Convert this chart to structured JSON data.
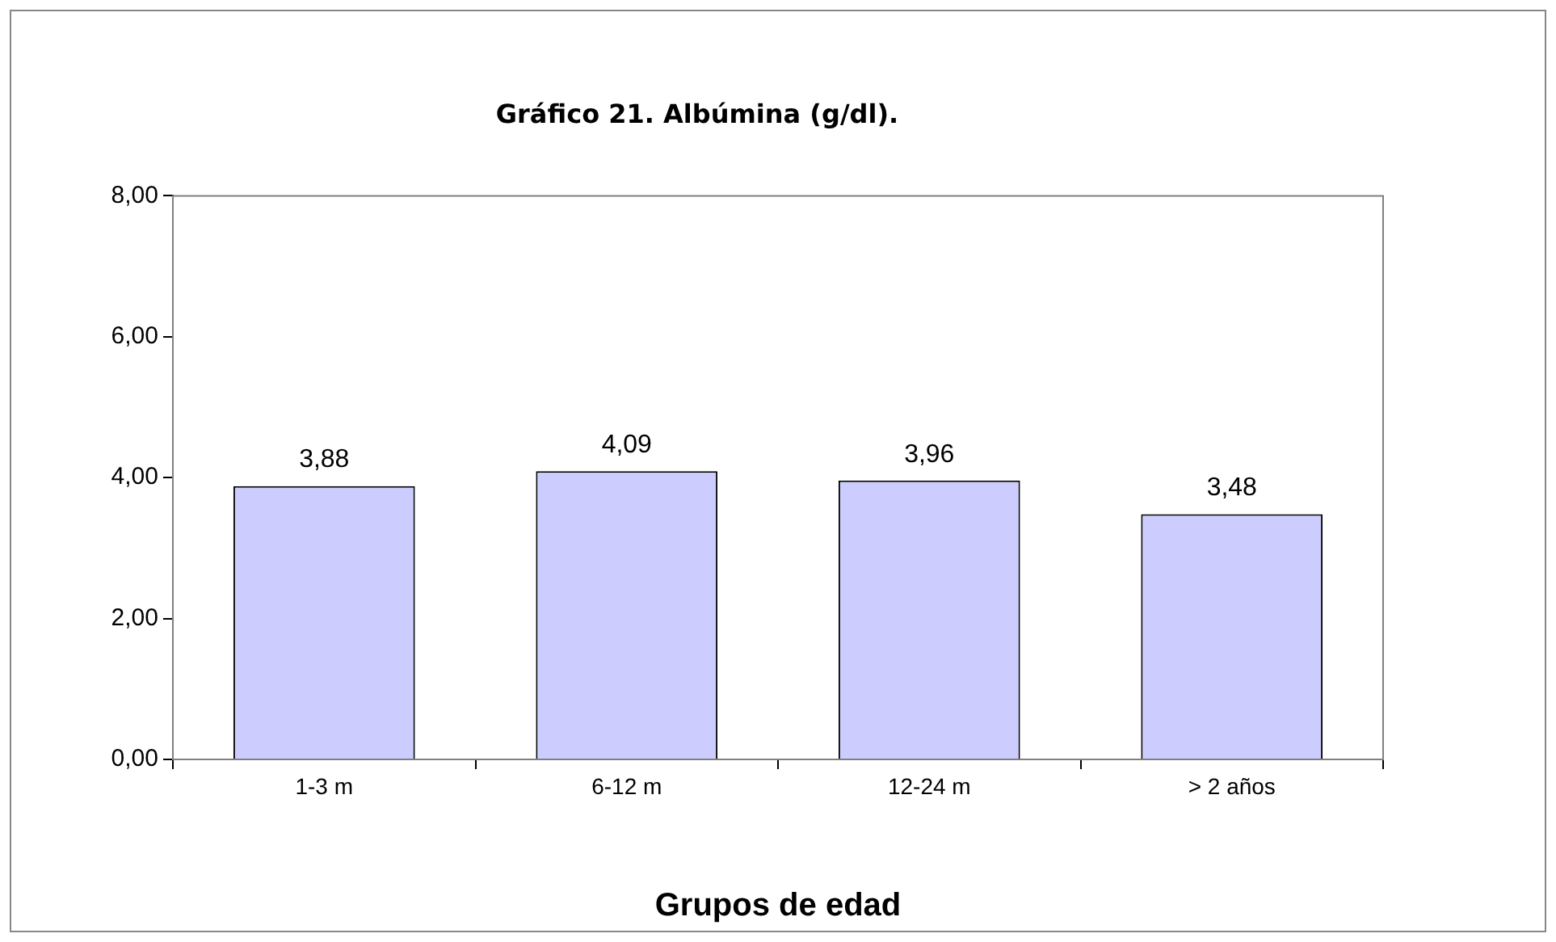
{
  "chart_data": {
    "type": "bar",
    "title": "Gráfico 21. Albúmina (g/dl).",
    "xlabel": "Grupos de edad",
    "categories": [
      "1-3 m",
      "6-12 m",
      "12-24 m",
      "> 2 años"
    ],
    "values": [
      3.88,
      4.09,
      3.96,
      3.48
    ],
    "value_labels": [
      "3,88",
      "4,09",
      "3,96",
      "3,48"
    ],
    "color": "#ccccff",
    "ylim": [
      0,
      8
    ],
    "yticks": [
      {
        "value": 0,
        "label": "0,00"
      },
      {
        "value": 2,
        "label": "2,00"
      },
      {
        "value": 4,
        "label": "4,00"
      },
      {
        "value": 6,
        "label": "6,00"
      },
      {
        "value": 8,
        "label": "8,00"
      }
    ],
    "grid": false,
    "legend": false
  }
}
